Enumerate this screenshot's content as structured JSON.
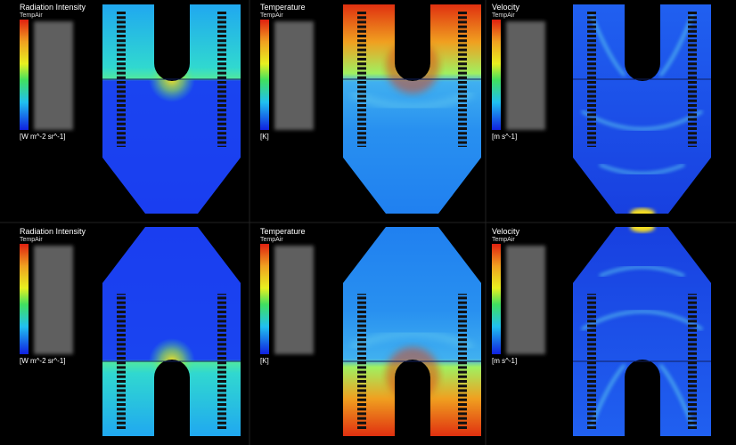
{
  "panels": [
    {
      "title": "Radiation Intensity",
      "subtitle": "TempAir",
      "unit": "[W m^-2 sr^-1]"
    },
    {
      "title": "Temperature",
      "subtitle": "TempAir",
      "unit": "[K]"
    },
    {
      "title": "Velocity",
      "subtitle": "TempAir",
      "unit": "[m s^-1]"
    },
    {
      "title": "Radiation Intensity",
      "subtitle": "TempAir",
      "unit": "[W m^-2 sr^-1]"
    },
    {
      "title": "Temperature",
      "subtitle": "TempAir",
      "unit": "[K]"
    },
    {
      "title": "Velocity",
      "subtitle": "TempAir",
      "unit": "[m s^-1]"
    }
  ]
}
